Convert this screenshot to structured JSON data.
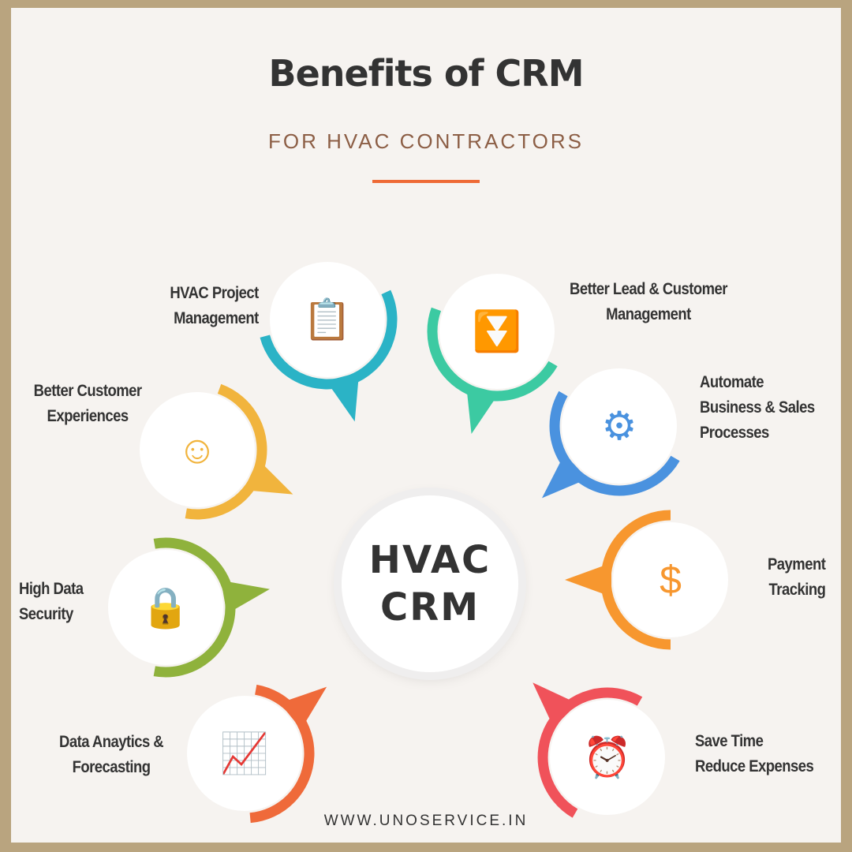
{
  "header": {
    "title": "Benefits of  CRM",
    "subtitle": "FOR HVAC CONTRACTORS"
  },
  "hub": {
    "line1": "HVAC",
    "line2": "CRM"
  },
  "benefits": [
    {
      "line1": "HVAC Project",
      "line2": "Management",
      "icon": "clipboard-gear-icon",
      "glyph": "📋",
      "color": "#2bb3c6"
    },
    {
      "line1": "Better Lead & Customer",
      "line2": "Management",
      "icon": "funnel-leads-icon",
      "glyph": "⏬",
      "color": "#3ccaa2"
    },
    {
      "line1": "Better Customer",
      "line2": "Experiences",
      "icon": "happy-customer-icon",
      "glyph": "☺",
      "color": "#f1b43d"
    },
    {
      "line1": "Automate",
      "line2": "Business & Sales",
      "line3": "Processes",
      "icon": "automation-gear-icon",
      "glyph": "⚙",
      "color": "#4a92df"
    },
    {
      "line1": "High Data",
      "line2": "Security",
      "icon": "secure-data-lock-icon",
      "glyph": "🔒",
      "color": "#8fb23c"
    },
    {
      "line1": "Payment",
      "line2": "Tracking",
      "icon": "hand-dollar-coin-icon",
      "glyph": "$",
      "color": "#f7972f"
    },
    {
      "line1": "Data Anaytics &",
      "line2": "Forecasting",
      "icon": "analytics-chart-icon",
      "glyph": "📈",
      "color": "#ef6a3a"
    },
    {
      "line1": "Save Time",
      "line2": "Reduce Expenses",
      "icon": "hand-alarm-clock-icon",
      "glyph": "⏰",
      "color": "#f0525a"
    }
  ],
  "colors": {
    "accent": "#ee6a36",
    "border": "#b9a47f",
    "background": "#f6f3f0"
  },
  "footer": {
    "url": "WWW.UNOSERVICE.IN"
  }
}
